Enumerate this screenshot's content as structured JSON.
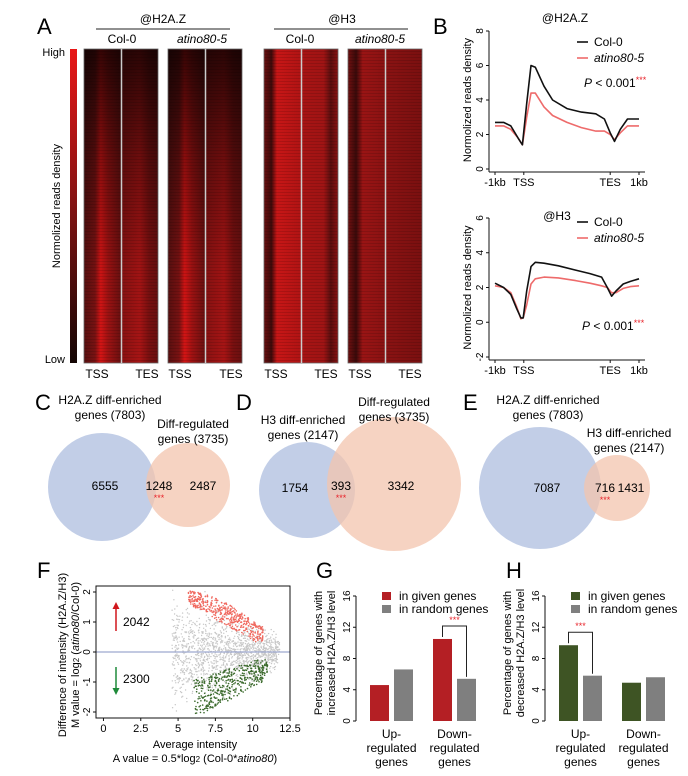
{
  "panel_letters": {
    "a": "A",
    "b": "B",
    "c": "C",
    "d": "D",
    "e": "E",
    "f": "F",
    "g": "G",
    "h": "H"
  },
  "colors": {
    "col0": "#111111",
    "mutant": "#ee6b6b",
    "venn_blue": "#b7c5e3",
    "venn_orange": "#f3c4ae",
    "sig_red": "#e8242b",
    "bar_red": "#b41f24",
    "bar_green": "#3e5424",
    "bar_gray": "#7f7f7f",
    "scatter_gray": "#c7c7c7",
    "scatter_red": "#f0685e",
    "scatter_green": "#3b6a2c",
    "zero_line": "#9ea9cf"
  },
  "panelA": {
    "groups": [
      {
        "title": "@H2A.Z",
        "samples": [
          "Col-0",
          "atino80-5"
        ]
      },
      {
        "title": "@H3",
        "samples": [
          "Col-0",
          "atino80-5"
        ]
      }
    ],
    "colorbar": {
      "high": "High",
      "low": "Low",
      "label": "Normolized reads density"
    },
    "tss": "TSS",
    "tes": "TES"
  },
  "chart_data": [
    {
      "id": "B-top",
      "type": "line",
      "title": "@H2A.Z",
      "ylabel": "Normolized reads density",
      "ylim": [
        0,
        8
      ],
      "yticks": [
        0,
        2,
        4,
        6,
        8
      ],
      "xticklabels": [
        "-1kb",
        "TSS",
        "TES",
        "1kb"
      ],
      "x_positions": [
        0,
        1,
        4,
        5
      ],
      "annotation": "P < 0.001",
      "annotation_sig": "***",
      "legend": [
        "Col-0",
        "atino80-5"
      ],
      "legend_position": "top-right",
      "series": [
        {
          "name": "Col-0",
          "x": [
            0,
            0.3,
            0.55,
            0.8,
            0.95,
            1.1,
            1.25,
            1.4,
            1.7,
            2.0,
            2.5,
            3.0,
            3.5,
            3.8,
            4.0,
            4.15,
            4.35,
            4.6,
            5.0
          ],
          "y": [
            2.7,
            2.7,
            2.5,
            1.8,
            1.4,
            3.8,
            6.0,
            5.9,
            4.8,
            4.0,
            3.5,
            3.3,
            3.2,
            2.9,
            2.1,
            1.6,
            2.3,
            2.9,
            2.9
          ]
        },
        {
          "name": "atino80-5",
          "x": [
            0,
            0.3,
            0.55,
            0.8,
            0.95,
            1.1,
            1.25,
            1.4,
            1.7,
            2.0,
            2.5,
            3.0,
            3.5,
            3.8,
            4.0,
            4.15,
            4.35,
            4.6,
            5.0
          ],
          "y": [
            2.5,
            2.5,
            2.3,
            1.8,
            1.4,
            3.0,
            4.4,
            4.4,
            3.6,
            3.1,
            2.7,
            2.4,
            2.2,
            2.2,
            2.0,
            1.7,
            2.1,
            2.5,
            2.5
          ]
        }
      ]
    },
    {
      "id": "B-bottom",
      "type": "line",
      "title": "@H3",
      "ylabel": "Normolized reads density",
      "ylim": [
        -2,
        6
      ],
      "yticks": [
        -2,
        0,
        2,
        4,
        6
      ],
      "xticklabels": [
        "-1kb",
        "TSS",
        "TES",
        "1kb"
      ],
      "x_positions": [
        0,
        1,
        4,
        5
      ],
      "annotation": "P < 0.001",
      "annotation_sig": "***",
      "legend": [
        "Col-0",
        "atino80-5"
      ],
      "legend_position": "top-right",
      "series": [
        {
          "name": "Col-0",
          "x": [
            0,
            0.3,
            0.55,
            0.75,
            0.9,
            0.98,
            1.1,
            1.25,
            1.4,
            1.7,
            2.2,
            2.8,
            3.3,
            3.7,
            3.9,
            4.05,
            4.2,
            4.45,
            4.7,
            5.0
          ],
          "y": [
            2.25,
            2.0,
            1.6,
            0.8,
            0.25,
            0.25,
            1.8,
            3.2,
            3.45,
            3.4,
            3.25,
            3.0,
            2.8,
            2.6,
            2.0,
            1.5,
            1.8,
            2.2,
            2.35,
            2.5
          ]
        },
        {
          "name": "atino80-5",
          "x": [
            0,
            0.3,
            0.55,
            0.75,
            0.9,
            0.98,
            1.1,
            1.25,
            1.4,
            1.7,
            2.2,
            2.8,
            3.3,
            3.7,
            3.9,
            4.05,
            4.2,
            4.45,
            4.7,
            5.0
          ],
          "y": [
            2.1,
            2.0,
            1.7,
            0.9,
            0.2,
            0.25,
            1.0,
            2.2,
            2.5,
            2.6,
            2.55,
            2.4,
            2.25,
            2.1,
            2.0,
            1.7,
            1.7,
            1.95,
            2.05,
            2.1
          ]
        }
      ]
    },
    {
      "id": "F",
      "type": "scatter",
      "xlabel": "Average intensity",
      "xlabel2": "A value = 0.5*log2 (Col-0*atino80)",
      "ylabel": "Difference of  intensity (H2A.Z/H3)",
      "ylabel2": "M value = log2 (atino80/Col-0)",
      "xlim": [
        -0.5,
        12.5
      ],
      "ylim": [
        -2.2,
        2.2
      ],
      "xticks": [
        0,
        2.5,
        5,
        7.5,
        10,
        12.5
      ],
      "yticks": [
        -2,
        -1,
        0,
        1,
        2
      ],
      "annotations": [
        {
          "text": "2042",
          "direction": "up"
        },
        {
          "text": "2300",
          "direction": "down"
        }
      ],
      "groups": [
        {
          "name": "unchanged",
          "color": "gray"
        },
        {
          "name": "increased",
          "count": 2042,
          "color": "red"
        },
        {
          "name": "decreased",
          "count": 2300,
          "color": "green"
        }
      ]
    },
    {
      "id": "G",
      "type": "bar",
      "ylabel": "Percentage of genes with increased H2A.Z/H3 level",
      "ylim": [
        0,
        16
      ],
      "yticks": [
        0,
        4,
        8,
        12,
        16
      ],
      "categories": [
        "Up-regulated genes",
        "Down-regulated genes"
      ],
      "series": [
        {
          "name": "in given genes",
          "values": [
            4.6,
            10.5
          ]
        },
        {
          "name": "in random genes",
          "values": [
            6.6,
            5.4
          ]
        }
      ],
      "significance": [
        {
          "category": "Down-regulated genes",
          "label": "***"
        }
      ],
      "legend_position": "top-right"
    },
    {
      "id": "H",
      "type": "bar",
      "ylabel": "Percentage of genes with decreased H2A.Z/H3 level",
      "ylim": [
        0,
        16
      ],
      "yticks": [
        0,
        4,
        8,
        12,
        16
      ],
      "categories": [
        "Up-regulated genes",
        "Down-regulated genes"
      ],
      "series": [
        {
          "name": "in given genes",
          "values": [
            9.7,
            4.9
          ]
        },
        {
          "name": "in random genes",
          "values": [
            5.8,
            5.6
          ]
        }
      ],
      "significance": [
        {
          "category": "Up-regulated genes",
          "label": "***"
        }
      ],
      "legend_position": "top-right"
    }
  ],
  "venns": [
    {
      "id": "C",
      "left_label": [
        "H2A.Z diff-enriched",
        "genes (7803)"
      ],
      "right_label": [
        "Diff-regulated",
        "genes (3735)"
      ],
      "left_only": "6555",
      "overlap": "1248",
      "right_only": "2487",
      "sig": "***"
    },
    {
      "id": "D",
      "left_label": [
        "H3 diff-enriched",
        "genes (2147)"
      ],
      "right_label": [
        "Diff-regulated",
        "genes (3735)"
      ],
      "left_only": "1754",
      "overlap": "393",
      "right_only": "3342",
      "sig": "***"
    },
    {
      "id": "E",
      "left_label": [
        "H2A.Z diff-enriched",
        "genes (7803)"
      ],
      "right_label": [
        "H3 diff-enriched",
        "genes (2147)"
      ],
      "left_only": "7087",
      "overlap": "716",
      "right_only": "1431",
      "sig": "***"
    }
  ],
  "bar_xlabels": {
    "up": [
      "Up-",
      "regulated",
      "genes"
    ],
    "down": [
      "Down-",
      "regulated",
      "genes"
    ]
  },
  "bar_ylabels": {
    "g": [
      "Percentage of genes with",
      "increased H2A.Z/H3 level"
    ],
    "h": [
      "Percentage of genes with",
      "decreased H2A.Z/H3 level"
    ]
  },
  "f_labels": {
    "ylabel1": "Difference of  intensity (H2A.Z/H3)",
    "ylabel2_pre": "M value = log",
    "ylabel2_sub": "2",
    "ylabel2_it": "atino80",
    "ylabel2_post": "/Col-0)",
    "xlabel1": "Average intensity",
    "xlabel2_pre": "A value = 0.5*log",
    "xlabel2_sub": "2",
    "xlabel2_mid": " (Col-0*",
    "xlabel2_it": "atino80",
    "xlabel2_post": ")"
  }
}
